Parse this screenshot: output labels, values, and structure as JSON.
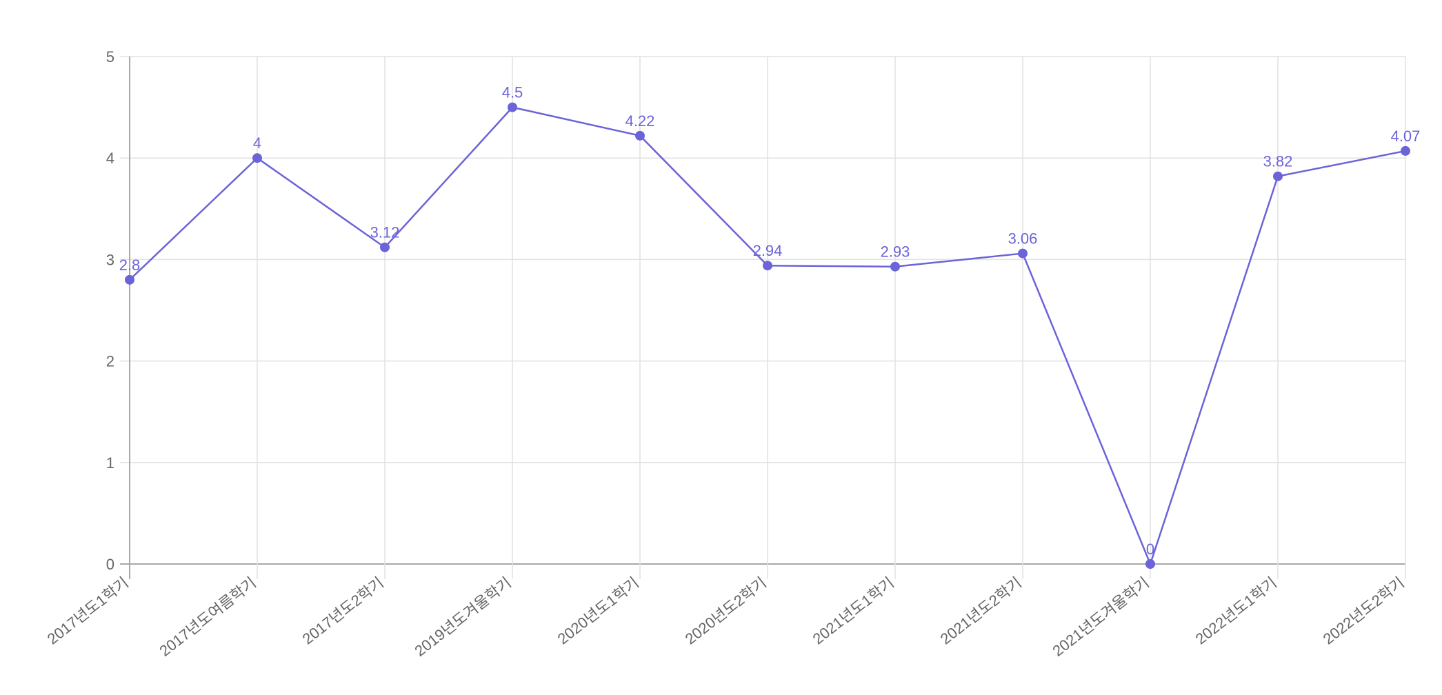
{
  "chart_data": {
    "type": "line",
    "title": "",
    "xlabel": "",
    "ylabel": "",
    "categories": [
      "2017년도1학기",
      "2017년도여름학기",
      "2017년도2학기",
      "2019년도겨울학기",
      "2020년도1학기",
      "2020년도2학기",
      "2021년도1학기",
      "2021년도2학기",
      "2021년도겨울학기",
      "2022년도1학기",
      "2022년도2학기"
    ],
    "series": [
      {
        "name": "",
        "values": [
          2.8,
          4,
          3.12,
          4.5,
          4.22,
          2.94,
          2.93,
          3.06,
          0,
          3.82,
          4.07
        ],
        "color": "#6b63d8"
      }
    ],
    "data_labels": [
      "2.8",
      "4",
      "3.12",
      "4.5",
      "4.22",
      "2.94",
      "2.93",
      "3.06",
      "0",
      "3.82",
      "4.07"
    ],
    "ylim": [
      0,
      5
    ],
    "yticks": [
      0,
      1,
      2,
      3,
      4,
      5
    ],
    "grid": true,
    "legend": "none"
  },
  "colors": {
    "line": "#6b63d8",
    "point": "#6b63d8",
    "grid": "#e1e1e1",
    "axis": "#a8a8a8",
    "tick_text": "#666666"
  }
}
